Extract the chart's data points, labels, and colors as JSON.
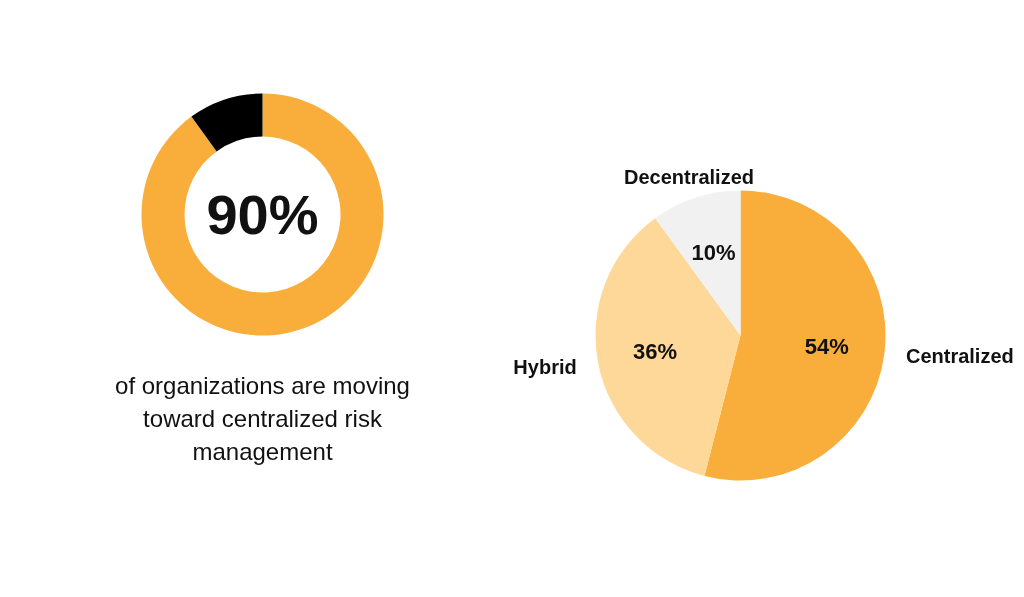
{
  "chart_data": [
    {
      "type": "donut",
      "categories": [
        null,
        null
      ],
      "values": [
        90,
        10
      ],
      "colors": [
        "#f9ae3b",
        "#000000"
      ],
      "value_labels": [
        "90%",
        null
      ],
      "annotations": [
        "of organizations are moving toward centralized risk management"
      ]
    },
    {
      "type": "pie",
      "categories": [
        "Centralized",
        "Hybrid",
        "Decentralized"
      ],
      "values": [
        54,
        36,
        10
      ],
      "colors": [
        "#f9ae3b",
        "#fdd899",
        "#f1f1f1"
      ],
      "value_labels": [
        "54%",
        "36%",
        "10%"
      ]
    }
  ]
}
